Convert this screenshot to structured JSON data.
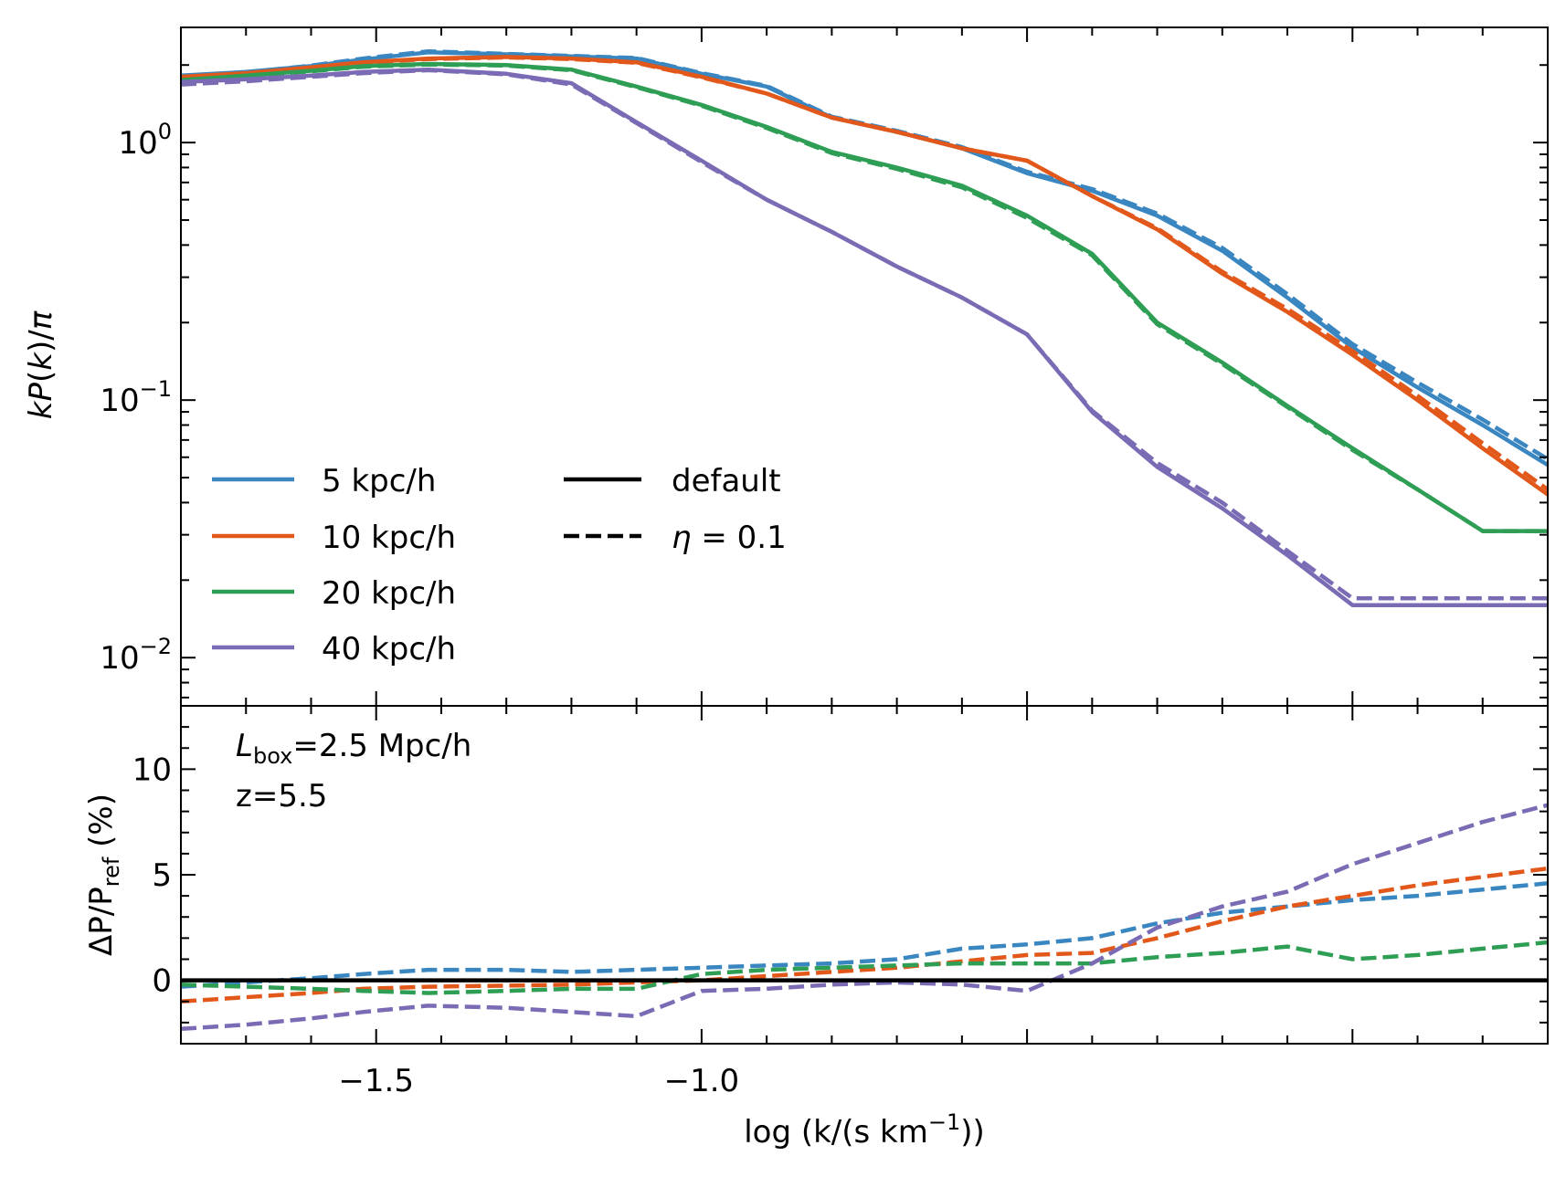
{
  "chart_data": [
    {
      "type": "line",
      "panel": "top",
      "yscale": "log",
      "ylabel_parts": [
        "k",
        "P",
        "(",
        "k",
        ")/",
        "π"
      ],
      "xlim": [
        -1.8,
        0.3
      ],
      "ylim": [
        0.0065,
        2.8
      ],
      "yticks": [
        {
          "value": 1,
          "base": "10",
          "exp": "0"
        },
        {
          "value": 0.1,
          "base": "10",
          "exp": "−1"
        },
        {
          "value": 0.01,
          "base": "10",
          "exp": "−2"
        }
      ],
      "series": [
        {
          "name": "5 kpc/h",
          "color": "#3a86c0",
          "style": "solid",
          "x": [
            -1.8,
            -1.7,
            -1.6,
            -1.52,
            -1.42,
            -1.3,
            -1.2,
            -1.1,
            -1.0,
            -0.9,
            -0.8,
            -0.7,
            -0.6,
            -0.5,
            -0.4,
            -0.3,
            -0.2,
            -0.1,
            0.0,
            0.1,
            0.2,
            0.3
          ],
          "y": [
            1.82,
            1.88,
            1.98,
            2.1,
            2.24,
            2.2,
            2.16,
            2.12,
            1.85,
            1.65,
            1.25,
            1.1,
            0.95,
            0.76,
            0.65,
            0.52,
            0.38,
            0.25,
            0.16,
            0.112,
            0.08,
            0.056
          ]
        },
        {
          "name": "5 kpc/h",
          "color": "#3a86c0",
          "style": "dashed",
          "x": [
            -1.8,
            -1.7,
            -1.6,
            -1.52,
            -1.42,
            -1.3,
            -1.2,
            -1.1,
            -1.0,
            -0.9,
            -0.8,
            -0.7,
            -0.6,
            -0.5,
            -0.4,
            -0.3,
            -0.2,
            -0.1,
            0.0,
            0.1,
            0.2,
            0.3
          ],
          "y": [
            1.8,
            1.87,
            1.99,
            2.12,
            2.26,
            2.21,
            2.17,
            2.13,
            1.86,
            1.66,
            1.26,
            1.11,
            0.96,
            0.77,
            0.66,
            0.53,
            0.39,
            0.258,
            0.165,
            0.117,
            0.084,
            0.059
          ]
        },
        {
          "name": "10 kpc/h",
          "color": "#e2581b",
          "style": "solid",
          "x": [
            -1.8,
            -1.7,
            -1.6,
            -1.52,
            -1.42,
            -1.3,
            -1.2,
            -1.1,
            -1.0,
            -0.9,
            -0.8,
            -0.7,
            -0.6,
            -0.5,
            -0.4,
            -0.3,
            -0.2,
            -0.1,
            0.0,
            0.1,
            0.2,
            0.3
          ],
          "y": [
            1.8,
            1.86,
            1.96,
            2.05,
            2.12,
            2.15,
            2.12,
            2.05,
            1.8,
            1.55,
            1.25,
            1.1,
            0.95,
            0.85,
            0.62,
            0.46,
            0.31,
            0.22,
            0.15,
            0.1,
            0.065,
            0.043
          ]
        },
        {
          "name": "10 kpc/h",
          "color": "#e2581b",
          "style": "dashed",
          "x": [
            -1.8,
            -1.7,
            -1.6,
            -1.52,
            -1.42,
            -1.3,
            -1.2,
            -1.1,
            -1.0,
            -0.9,
            -0.8,
            -0.7,
            -0.6,
            -0.5,
            -0.4,
            -0.3,
            -0.2,
            -0.1,
            0.0,
            0.1,
            0.2,
            0.3
          ],
          "y": [
            1.78,
            1.85,
            1.94,
            2.04,
            2.11,
            2.14,
            2.11,
            2.04,
            1.79,
            1.55,
            1.25,
            1.1,
            0.95,
            0.85,
            0.62,
            0.465,
            0.315,
            0.226,
            0.155,
            0.104,
            0.068,
            0.045
          ]
        },
        {
          "name": "20 kpc/h",
          "color": "#2e9e55",
          "style": "solid",
          "x": [
            -1.8,
            -1.7,
            -1.6,
            -1.52,
            -1.42,
            -1.3,
            -1.2,
            -1.1,
            -1.0,
            -0.9,
            -0.8,
            -0.7,
            -0.6,
            -0.5,
            -0.4,
            -0.3,
            -0.2,
            -0.1,
            0.0,
            0.1,
            0.2,
            0.3
          ],
          "y": [
            1.75,
            1.82,
            1.9,
            1.98,
            2.02,
            2.0,
            1.92,
            1.65,
            1.4,
            1.15,
            0.92,
            0.8,
            0.68,
            0.52,
            0.37,
            0.2,
            0.14,
            0.095,
            0.065,
            0.045,
            0.031,
            0.031
          ]
        },
        {
          "name": "20 kpc/h",
          "color": "#2e9e55",
          "style": "dashed",
          "x": [
            -1.8,
            -1.7,
            -1.6,
            -1.52,
            -1.42,
            -1.3,
            -1.2,
            -1.1,
            -1.0,
            -0.9,
            -0.8,
            -0.7,
            -0.6,
            -0.5,
            -0.4,
            -0.3,
            -0.2,
            -0.1,
            0.0,
            0.1,
            0.2,
            0.3
          ],
          "y": [
            1.74,
            1.81,
            1.89,
            1.97,
            2.01,
            1.99,
            1.91,
            1.64,
            1.39,
            1.14,
            0.91,
            0.79,
            0.67,
            0.51,
            0.365,
            0.197,
            0.138,
            0.094,
            0.064,
            0.045,
            0.031,
            0.031
          ]
        },
        {
          "name": "40 kpc/h",
          "color": "#7b6bb5",
          "style": "solid",
          "x": [
            -1.8,
            -1.7,
            -1.6,
            -1.52,
            -1.42,
            -1.3,
            -1.2,
            -1.1,
            -1.0,
            -0.9,
            -0.8,
            -0.7,
            -0.6,
            -0.5,
            -0.4,
            -0.3,
            -0.2,
            -0.1,
            0.0,
            0.1,
            0.2,
            0.3
          ],
          "y": [
            1.72,
            1.76,
            1.82,
            1.88,
            1.92,
            1.85,
            1.7,
            1.2,
            0.85,
            0.6,
            0.45,
            0.33,
            0.25,
            0.18,
            0.09,
            0.055,
            0.038,
            0.025,
            0.016,
            0.016,
            0.016,
            0.016
          ]
        },
        {
          "name": "40 kpc/h",
          "color": "#7b6bb5",
          "style": "dashed",
          "x": [
            -1.8,
            -1.7,
            -1.6,
            -1.52,
            -1.42,
            -1.3,
            -1.2,
            -1.1,
            -1.0,
            -0.9,
            -0.8,
            -0.7,
            -0.6,
            -0.5,
            -0.4,
            -0.3,
            -0.2,
            -0.1,
            0.0,
            0.1,
            0.2,
            0.3
          ],
          "y": [
            1.68,
            1.73,
            1.8,
            1.86,
            1.91,
            1.84,
            1.68,
            1.19,
            0.84,
            0.6,
            0.45,
            0.33,
            0.25,
            0.18,
            0.091,
            0.057,
            0.04,
            0.026,
            0.017,
            0.017,
            0.017,
            0.017
          ]
        }
      ],
      "legend": {
        "placement": "lower-left",
        "resolution_entries": [
          {
            "label": "5 kpc/h",
            "color": "#3a86c0"
          },
          {
            "label": "10 kpc/h",
            "color": "#e2581b"
          },
          {
            "label": "20 kpc/h",
            "color": "#2e9e55"
          },
          {
            "label": "40 kpc/h",
            "color": "#7b6bb5"
          }
        ],
        "style_entries": [
          {
            "label": "default",
            "style": "solid"
          },
          {
            "label_symbol": "η",
            "label_value": " = 0.1",
            "style": "dashed"
          }
        ]
      }
    },
    {
      "type": "line",
      "panel": "bottom",
      "ylabel_parts": [
        "ΔP/P",
        "ref",
        " (%)"
      ],
      "xlabel_parts": [
        "log (k/(s km",
        "−1",
        "))"
      ],
      "xlim": [
        -1.8,
        0.3
      ],
      "ylim": [
        -3,
        13
      ],
      "yticks": [
        0,
        5,
        10
      ],
      "xticks": [
        {
          "value": -1.5,
          "label": "−1.5"
        },
        {
          "value": -1.0,
          "label": "−1.0"
        }
      ],
      "annotations": {
        "box_symbol": "L",
        "box_subscript": "box",
        "box_value": "=2.5 Mpc/h",
        "redshift": "z=5.5"
      },
      "reference": {
        "value": 0,
        "color": "#000000"
      },
      "series": [
        {
          "name": "5 kpc/h",
          "color": "#3a86c0",
          "style": "dashed",
          "x": [
            -1.8,
            -1.7,
            -1.6,
            -1.52,
            -1.42,
            -1.3,
            -1.2,
            -1.1,
            -1.0,
            -0.9,
            -0.8,
            -0.7,
            -0.6,
            -0.5,
            -0.4,
            -0.3,
            -0.2,
            -0.1,
            0.0,
            0.1,
            0.2,
            0.3
          ],
          "y": [
            -0.3,
            -0.1,
            0.1,
            0.3,
            0.5,
            0.5,
            0.4,
            0.5,
            0.6,
            0.7,
            0.8,
            1.0,
            1.5,
            1.7,
            2.0,
            2.7,
            3.2,
            3.5,
            3.8,
            4.0,
            4.3,
            4.6
          ]
        },
        {
          "name": "10 kpc/h",
          "color": "#e2581b",
          "style": "dashed",
          "x": [
            -1.8,
            -1.7,
            -1.6,
            -1.52,
            -1.42,
            -1.3,
            -1.2,
            -1.1,
            -1.0,
            -0.9,
            -0.8,
            -0.7,
            -0.6,
            -0.5,
            -0.4,
            -0.3,
            -0.2,
            -0.1,
            0.0,
            0.1,
            0.2,
            0.3
          ],
          "y": [
            -1.0,
            -0.8,
            -0.6,
            -0.4,
            -0.3,
            -0.25,
            -0.2,
            -0.1,
            0.0,
            0.2,
            0.4,
            0.6,
            0.9,
            1.2,
            1.3,
            2.0,
            2.8,
            3.5,
            4.0,
            4.5,
            4.9,
            5.3
          ]
        },
        {
          "name": "20 kpc/h",
          "color": "#2e9e55",
          "style": "dashed",
          "x": [
            -1.8,
            -1.7,
            -1.6,
            -1.52,
            -1.42,
            -1.3,
            -1.2,
            -1.1,
            -1.0,
            -0.9,
            -0.8,
            -0.7,
            -0.6,
            -0.5,
            -0.4,
            -0.3,
            -0.2,
            -0.1,
            0.0,
            0.1,
            0.2,
            0.3
          ],
          "y": [
            -0.2,
            -0.3,
            -0.4,
            -0.5,
            -0.6,
            -0.5,
            -0.4,
            -0.4,
            0.3,
            0.5,
            0.6,
            0.7,
            0.8,
            0.8,
            0.8,
            1.1,
            1.3,
            1.6,
            1.0,
            1.2,
            1.5,
            1.8
          ]
        },
        {
          "name": "40 kpc/h",
          "color": "#7b6bb5",
          "style": "dashed",
          "x": [
            -1.8,
            -1.7,
            -1.6,
            -1.52,
            -1.42,
            -1.3,
            -1.2,
            -1.1,
            -1.0,
            -0.9,
            -0.8,
            -0.7,
            -0.6,
            -0.5,
            -0.4,
            -0.3,
            -0.2,
            -0.1,
            0.0,
            0.1,
            0.2,
            0.3
          ],
          "y": [
            -2.3,
            -2.1,
            -1.8,
            -1.5,
            -1.2,
            -1.3,
            -1.5,
            -1.7,
            -0.5,
            -0.4,
            -0.2,
            -0.1,
            -0.2,
            -0.5,
            0.8,
            2.5,
            3.5,
            4.2,
            5.5,
            6.5,
            7.5,
            8.3
          ]
        }
      ]
    }
  ]
}
